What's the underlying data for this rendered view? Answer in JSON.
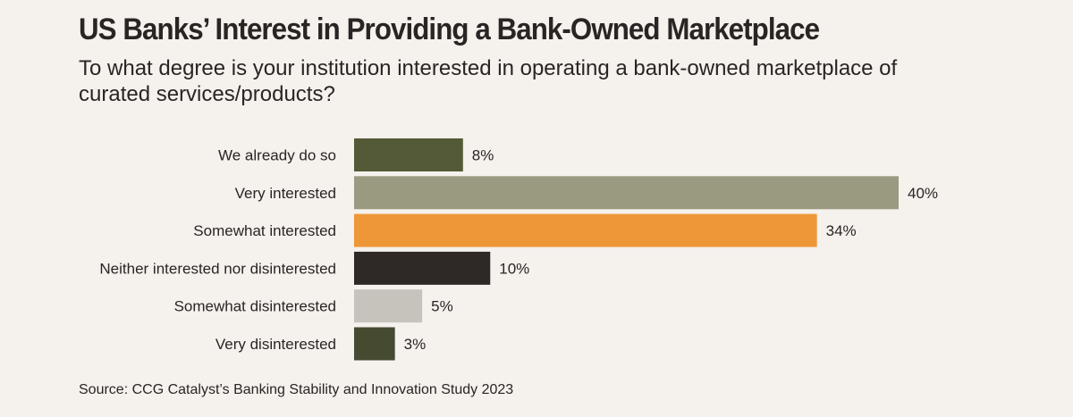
{
  "title": "US Banks’ Interest in Providing a Bank-Owned Marketplace",
  "subtitle": "To what degree is your institution interested in operating a bank-owned marketplace of curated services/products?",
  "source": "Source: CCG Catalyst’s Banking Stability and Innovation Study 2023",
  "chart_data": {
    "type": "bar",
    "orientation": "horizontal",
    "title": "US Banks’ Interest in Providing a Bank-Owned Marketplace",
    "subtitle": "To what degree is your institution interested in operating a bank-owned marketplace of curated services/products?",
    "categories": [
      "We already do so",
      "Very interested",
      "Somewhat interested",
      "Neither interested nor disinterested",
      "Somewhat disinterested",
      "Very disinterested"
    ],
    "values": [
      8,
      40,
      34,
      10,
      5,
      3
    ],
    "value_labels": [
      "8%",
      "40%",
      "34%",
      "10%",
      "5%",
      "3%"
    ],
    "unit": "%",
    "colors": [
      "#545a37",
      "#999a7f",
      "#ee9738",
      "#2e2927",
      "#c6c3bd",
      "#454a31"
    ],
    "xlim": [
      0,
      40
    ],
    "grid": false,
    "legend": "none"
  }
}
